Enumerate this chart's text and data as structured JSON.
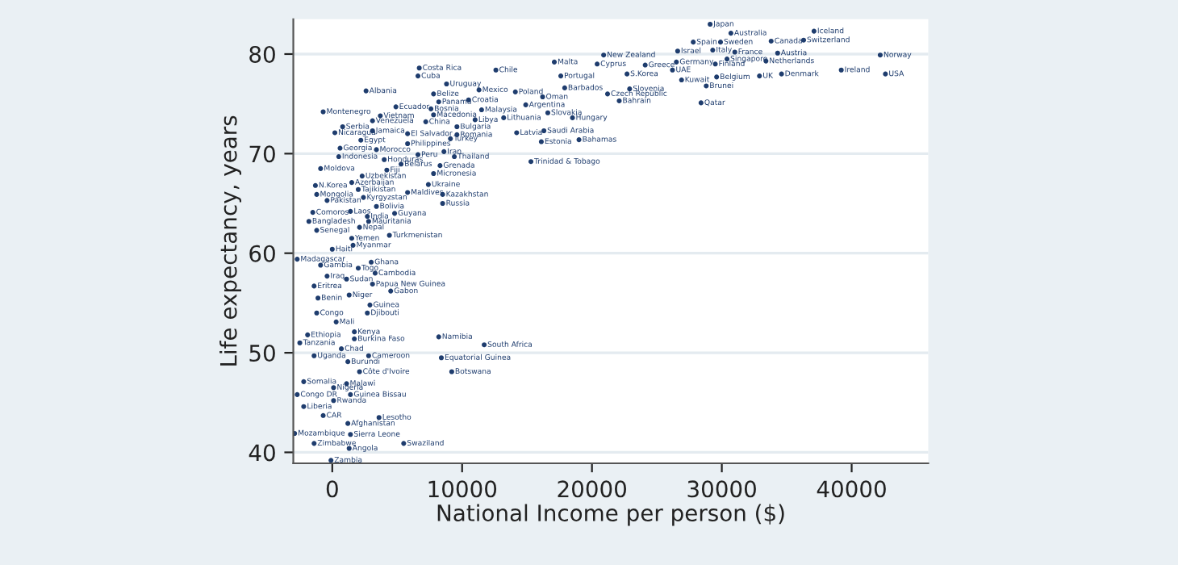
{
  "chart_data": {
    "type": "scatter",
    "xlabel": "National Income per person ($)",
    "ylabel": "Life expectancy, years",
    "xlim": [
      -3000,
      45900
    ],
    "ylim": [
      38.9,
      83.5
    ],
    "xticks": [
      0,
      10000,
      20000,
      30000,
      40000
    ],
    "yticks": [
      40,
      50,
      60,
      70,
      80
    ],
    "grid": "y",
    "marker": "circle",
    "color": "#1f3d6e",
    "x": [
      29100,
      30700,
      37100,
      27800,
      29900,
      33800,
      36300,
      26600,
      29300,
      31000,
      34300,
      42200,
      30400,
      33400,
      29500,
      20900,
      20400,
      24100,
      26500,
      26200,
      17100,
      12600,
      6700,
      6600,
      22700,
      39200,
      42600,
      32900,
      34600,
      29600,
      26900,
      28800,
      17600,
      28400,
      17900,
      22900,
      21200,
      22100,
      8800,
      11300,
      14100,
      16200,
      2600,
      7800,
      8200,
      10500,
      14900,
      16600,
      18500,
      11500,
      13200,
      14200,
      16300,
      16100,
      19000,
      15300,
      4900,
      7600,
      7800,
      -700,
      3700,
      3100,
      7200,
      11000,
      9600,
      9600,
      9100,
      800,
      200,
      3100,
      2200,
      5800,
      5800,
      600,
      3400,
      8600,
      9400,
      500,
      4000,
      6600,
      8300,
      5300,
      4200,
      -900,
      7800,
      2300,
      1500,
      -1300,
      7400,
      2000,
      5800,
      8500,
      -1200,
      2400,
      -400,
      8500,
      3400,
      -1500,
      1400,
      4800,
      2700,
      2800,
      -1800,
      2100,
      -1200,
      1500,
      4400,
      1600,
      0,
      -2700,
      -900,
      3000,
      2000,
      3300,
      -400,
      1100,
      3100,
      4500,
      -1400,
      1300,
      -1100,
      2900,
      -1200,
      2700,
      300,
      8200,
      11700,
      1700,
      1700,
      -1900,
      -2500,
      700,
      -1400,
      2800,
      1200,
      8400,
      2100,
      9200,
      -2200,
      1100,
      100,
      -2700,
      1400,
      100,
      -2200,
      -700,
      3600,
      1200,
      -2900,
      1400,
      -1400,
      1300,
      5500,
      -100
    ],
    "values": [
      83.0,
      82.1,
      82.3,
      81.2,
      81.2,
      81.3,
      81.4,
      80.3,
      80.4,
      80.2,
      80.1,
      79.9,
      79.5,
      79.3,
      79.0,
      79.9,
      79.0,
      78.9,
      79.2,
      78.4,
      79.2,
      78.4,
      78.6,
      77.8,
      78.0,
      78.4,
      78.0,
      77.8,
      78.0,
      77.7,
      77.4,
      76.8,
      77.8,
      75.1,
      76.6,
      76.5,
      76.0,
      75.3,
      77.0,
      76.4,
      76.2,
      75.7,
      76.3,
      76.0,
      75.2,
      75.4,
      74.9,
      74.1,
      73.6,
      74.4,
      73.6,
      72.1,
      72.3,
      71.2,
      71.4,
      69.2,
      74.7,
      74.5,
      73.9,
      74.2,
      73.8,
      73.3,
      73.2,
      73.4,
      72.7,
      71.9,
      71.5,
      72.7,
      72.1,
      72.3,
      71.35,
      72.0,
      71.0,
      70.55,
      70.4,
      70.2,
      69.7,
      69.7,
      69.4,
      69.9,
      68.8,
      68.95,
      68.35,
      68.5,
      68.0,
      67.75,
      67.1,
      66.8,
      66.9,
      66.4,
      66.1,
      65.9,
      65.9,
      65.6,
      65.3,
      65.0,
      64.7,
      64.1,
      64.2,
      64.0,
      63.7,
      63.2,
      63.2,
      62.6,
      62.3,
      61.5,
      61.8,
      60.8,
      60.4,
      59.4,
      58.8,
      59.1,
      58.5,
      58.0,
      57.7,
      57.4,
      56.9,
      56.2,
      56.7,
      55.8,
      55.5,
      54.8,
      54.0,
      54.0,
      53.1,
      51.6,
      50.8,
      52.1,
      51.4,
      51.8,
      51.0,
      50.4,
      49.7,
      49.7,
      49.1,
      49.5,
      48.1,
      48.1,
      47.1,
      46.9,
      46.5,
      45.8,
      45.8,
      45.2,
      44.6,
      43.7,
      43.5,
      42.9,
      41.9,
      41.8,
      40.9,
      40.4,
      40.9,
      39.2
    ],
    "value_labels": [
      "Japan",
      "Australia",
      "Iceland",
      "Spain",
      "Sweden",
      "Canada",
      "Switzerland",
      "Israel",
      "Italy",
      "France",
      "Austria",
      "Norway",
      "Singapore",
      "Netherlands",
      "Finland",
      "New Zealand",
      "Cyprus",
      "Greece",
      "Germany",
      "UAE",
      "Malta",
      "Chile",
      "Costa Rica",
      "Cuba",
      "S.Korea",
      "Ireland",
      "USA",
      "UK",
      "Denmark",
      "Belgium",
      "Kuwait",
      "Brunei",
      "Portugal",
      "Qatar",
      "Barbados",
      "Slovenia",
      "Czech Republic",
      "Bahrain",
      "Uruguay",
      "Mexico",
      "Poland",
      "Oman",
      "Albania",
      "Belize",
      "Panama",
      "Croatia",
      "Argentina",
      "Slovakia",
      "Hungary",
      "Malaysia",
      "Lithuania",
      "Latvia",
      "Saudi Arabia",
      "Estonia",
      "Bahamas",
      "Trinidad & Tobago",
      "Ecuador",
      "Bosnia",
      "Macedonia",
      "Montenegro",
      "Vietnam",
      "Venezuela",
      "China",
      "Libya",
      "Bulgaria",
      "Romania",
      "Turkey",
      "Serbia",
      "Nicaragua",
      "Jamaica",
      "Egypt",
      "El Salvador",
      "Philippines",
      "Georgia",
      "Morocco",
      "Iran",
      "Thailand",
      "Indonesia",
      "Honduras",
      "Peru",
      "Grenada",
      "Belarus",
      "Fiji",
      "Moldova",
      "Micronesia",
      "Uzbekistan",
      "Azerbaijan",
      "N.Korea",
      "Ukraine",
      "Tajikistan",
      "Maldives",
      "Kazakhstan",
      "Mongolia",
      "Kyrgyzstan",
      "Pakistan",
      "Russia",
      "Bolivia",
      "Comoros",
      "Laos",
      "Guyana",
      "India",
      "Mauritania",
      "Bangladesh",
      "Nepal",
      "Senegal",
      "Yemen",
      "Turkmenistan",
      "Myanmar",
      "Haiti",
      "Madagascar",
      "Gambia",
      "Ghana",
      "Togo",
      "Cambodia",
      "Iraq",
      "Sudan",
      "Papua New Guinea",
      "Gabon",
      "Eritrea",
      "Niger",
      "Benin",
      "Guinea",
      "Congo",
      "Djibouti",
      "Mali",
      "Namibia",
      "South Africa",
      "Kenya",
      "Burkina Faso",
      "Ethiopia",
      "Tanzania",
      "Chad",
      "Uganda",
      "Cameroon",
      "Burundi",
      "Equatorial Guinea",
      "Côte d'Ivoire",
      "Botswana",
      "Somalia",
      "Malawi",
      "Nigeria",
      "Congo DR",
      "Guinea Bissau",
      "Rwanda",
      "Liberia",
      "CAR",
      "Lesotho",
      "Afghanistan",
      "Mozambique",
      "Sierra Leone",
      "Zimbabwe",
      "Angola",
      "Swaziland",
      "Zambia"
    ]
  }
}
